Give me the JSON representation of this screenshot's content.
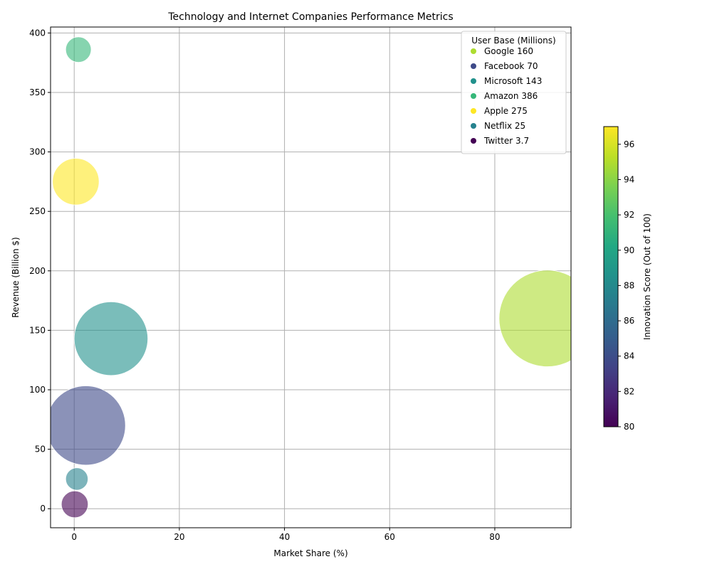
{
  "chart_data": {
    "type": "scatter",
    "title": "Technology and Internet Companies Performance Metrics",
    "xlabel": "Market Share (%)",
    "ylabel": "Revenue (Billion $)",
    "xlim": [
      -4.5,
      94.5
    ],
    "ylim": [
      -16,
      405
    ],
    "xticks": [
      0,
      20,
      40,
      60,
      80
    ],
    "yticks": [
      0,
      50,
      100,
      150,
      200,
      250,
      300,
      350,
      400
    ],
    "grid": true,
    "legend_title": "User Base (Millions)",
    "legend_position": "top-right",
    "colorbar": {
      "label": "Innovation Score (Out of 100)",
      "min": 80,
      "max": 97,
      "ticks": [
        80,
        82,
        84,
        86,
        88,
        90,
        92,
        94,
        96
      ],
      "colormap": "viridis"
    },
    "points": [
      {
        "label": "Google 160",
        "market_share": 90,
        "revenue": 160,
        "user_base": 4300,
        "innovation": 95,
        "color": "#addc30"
      },
      {
        "label": "Facebook 70",
        "market_share": 2.2,
        "revenue": 70,
        "user_base": 2900,
        "innovation": 85,
        "color": "#3e4a89"
      },
      {
        "label": "Microsoft 143",
        "market_share": 7,
        "revenue": 143,
        "user_base": 2500,
        "innovation": 90,
        "color": "#21918c"
      },
      {
        "label": "Amazon 386",
        "market_share": 0.8,
        "revenue": 386,
        "user_base": 300,
        "innovation": 92,
        "color": "#35b779"
      },
      {
        "label": "Apple 275",
        "market_share": 0.3,
        "revenue": 275,
        "user_base": 1000,
        "innovation": 97,
        "color": "#fde725"
      },
      {
        "label": "Netflix 25",
        "market_share": 0.5,
        "revenue": 25,
        "user_base": 230,
        "innovation": 87,
        "color": "#26828e"
      },
      {
        "label": "Twitter 3.7",
        "market_share": 0.1,
        "revenue": 3.7,
        "user_base": 330,
        "innovation": 80,
        "color": "#440154"
      }
    ]
  }
}
